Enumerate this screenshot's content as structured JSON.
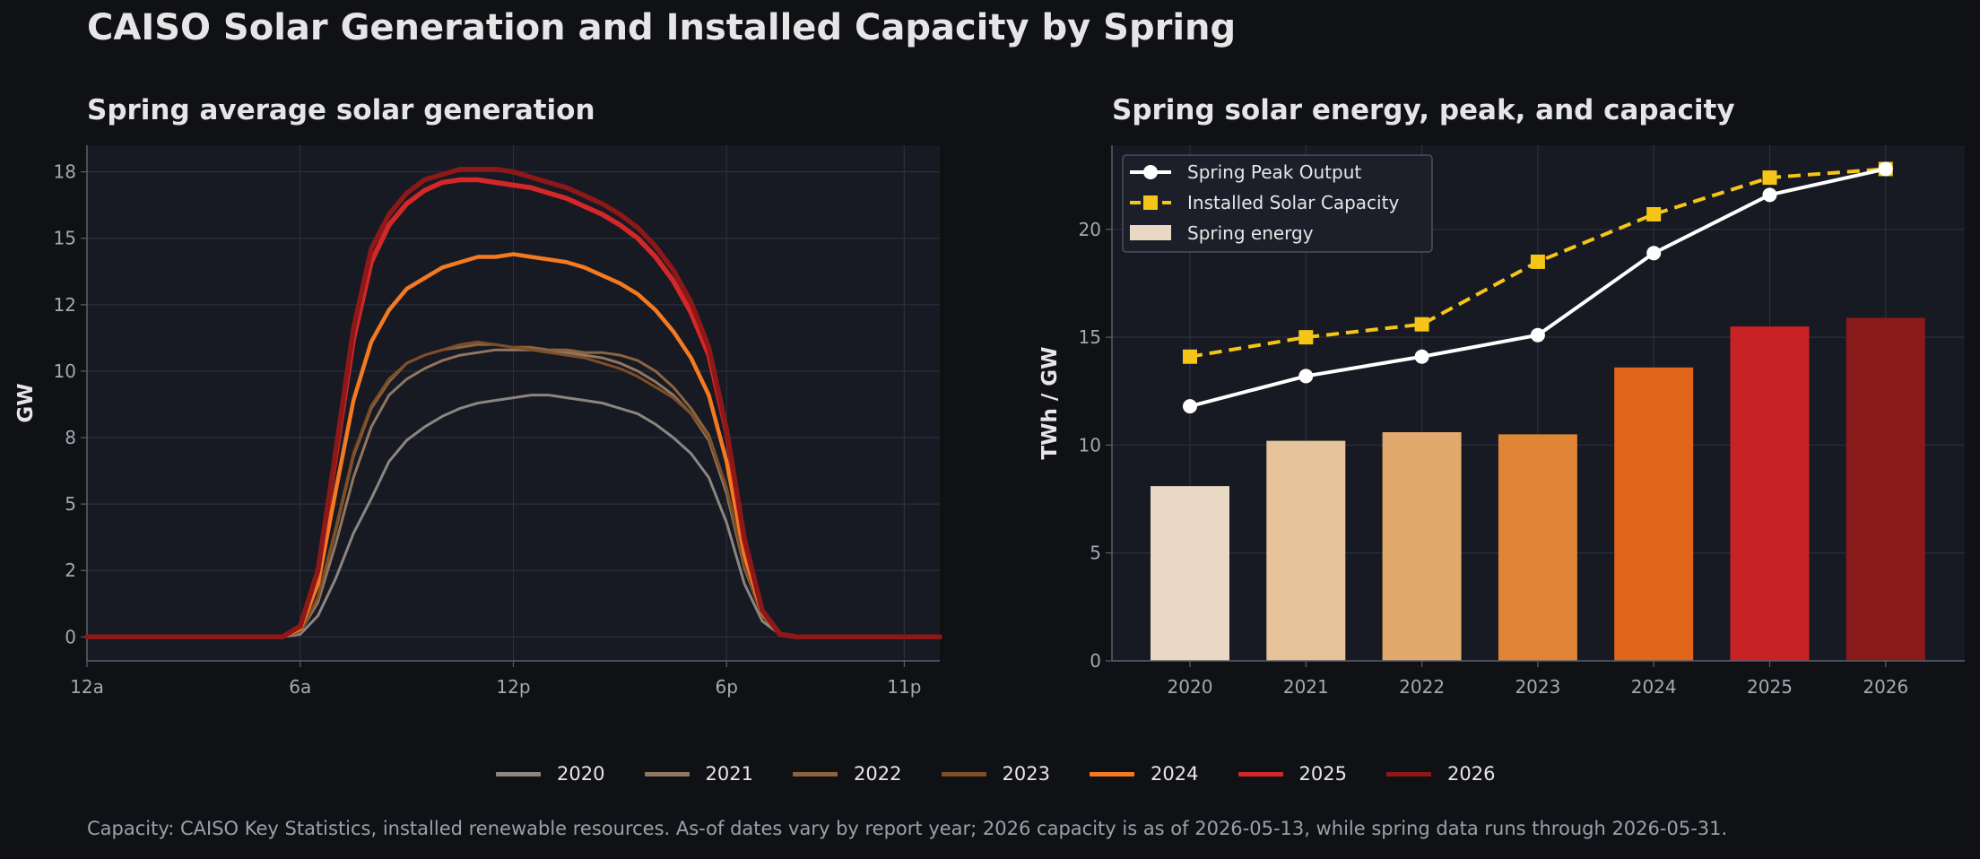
{
  "title": "CAISO Solar Generation and Installed Capacity by Spring",
  "footnote": "Capacity: CAISO Key Statistics, installed renewable resources. As-of dates vary by report year; 2026 capacity is as of 2026-05-13, while spring data runs through 2026-05-31.",
  "colors": {
    "background": "#101115",
    "plot_bg": "#171923",
    "grid": "#2c303c",
    "spine": "#59606c",
    "tick_text": "#a4a8b0",
    "peak_line": "#ffffff",
    "capacity_line": "#f5c518"
  },
  "legend_bottom": [
    {
      "label": "2020",
      "color": "#8c8580"
    },
    {
      "label": "2021",
      "color": "#917660"
    },
    {
      "label": "2022",
      "color": "#8a6440"
    },
    {
      "label": "2023",
      "color": "#7e4e26"
    },
    {
      "label": "2024",
      "color": "#f47a22"
    },
    {
      "label": "2025",
      "color": "#d42828"
    },
    {
      "label": "2026",
      "color": "#8e1818"
    }
  ],
  "chart_data": [
    {
      "type": "line",
      "title": "Spring average solar generation",
      "xlabel": "",
      "ylabel": "GW",
      "x_ticks": [
        "12a",
        "6a",
        "12p",
        "6p",
        "11p"
      ],
      "x_tick_hours": [
        0,
        6,
        12,
        18,
        23
      ],
      "xlim": [
        0,
        24
      ],
      "y_ticks": [
        "0",
        "2",
        "5",
        "8",
        "10",
        "12",
        "15",
        "18"
      ],
      "y_tick_values": [
        0,
        2.5,
        5,
        7.5,
        10,
        12.5,
        15,
        17.5
      ],
      "ylim": [
        -0.9,
        18.5
      ],
      "grid": true,
      "legend": "bottom",
      "x_hours": [
        0,
        5.5,
        6,
        6.5,
        7,
        7.5,
        8,
        8.5,
        9,
        9.5,
        10,
        10.5,
        11,
        11.5,
        12,
        12.5,
        13,
        13.5,
        14,
        14.5,
        15,
        15.5,
        16,
        16.5,
        17,
        17.5,
        18,
        18.5,
        19,
        19.5,
        20,
        24
      ],
      "series": [
        {
          "name": "2020",
          "color": "#8c8580",
          "width": 3.0,
          "values": [
            0,
            0,
            0.1,
            0.8,
            2.2,
            3.9,
            5.2,
            6.6,
            7.4,
            7.9,
            8.3,
            8.6,
            8.8,
            8.9,
            9.0,
            9.1,
            9.1,
            9.0,
            8.9,
            8.8,
            8.6,
            8.4,
            8.0,
            7.5,
            6.9,
            6.0,
            4.3,
            2.0,
            0.6,
            0.1,
            0,
            0
          ]
        },
        {
          "name": "2021",
          "color": "#917660",
          "width": 3.0,
          "values": [
            0,
            0,
            0.2,
            1.3,
            3.5,
            6.0,
            7.9,
            9.1,
            9.7,
            10.1,
            10.4,
            10.6,
            10.7,
            10.8,
            10.8,
            10.8,
            10.7,
            10.7,
            10.6,
            10.5,
            10.3,
            10.0,
            9.6,
            9.1,
            8.4,
            7.4,
            5.4,
            2.6,
            0.8,
            0.1,
            0,
            0
          ]
        },
        {
          "name": "2022",
          "color": "#8a6440",
          "width": 3.0,
          "values": [
            0,
            0,
            0.2,
            1.5,
            4.0,
            6.8,
            8.6,
            9.6,
            10.3,
            10.6,
            10.8,
            10.9,
            11.0,
            11.0,
            10.9,
            10.9,
            10.8,
            10.8,
            10.7,
            10.7,
            10.6,
            10.4,
            10.0,
            9.4,
            8.6,
            7.6,
            5.6,
            2.7,
            0.8,
            0.1,
            0,
            0
          ]
        },
        {
          "name": "2023",
          "color": "#7e4e26",
          "width": 3.0,
          "values": [
            0,
            0,
            0.2,
            1.5,
            4.1,
            6.9,
            8.7,
            9.7,
            10.3,
            10.6,
            10.8,
            11.0,
            11.1,
            11.0,
            10.9,
            10.8,
            10.7,
            10.6,
            10.5,
            10.3,
            10.1,
            9.8,
            9.4,
            9.0,
            8.4,
            7.5,
            5.6,
            2.7,
            0.8,
            0.1,
            0,
            0
          ]
        },
        {
          "name": "2024",
          "color": "#f47a22",
          "width": 4.5,
          "values": [
            0,
            0,
            0.3,
            2.0,
            5.5,
            8.9,
            11.1,
            12.3,
            13.1,
            13.5,
            13.9,
            14.1,
            14.3,
            14.3,
            14.4,
            14.3,
            14.2,
            14.1,
            13.9,
            13.6,
            13.3,
            12.9,
            12.3,
            11.5,
            10.5,
            9.1,
            6.6,
            3.1,
            0.9,
            0.1,
            0,
            0
          ]
        },
        {
          "name": "2025",
          "color": "#d42828",
          "width": 5.5,
          "values": [
            0,
            0,
            0.4,
            2.5,
            6.8,
            11.2,
            14.1,
            15.5,
            16.3,
            16.8,
            17.1,
            17.2,
            17.2,
            17.1,
            17.0,
            16.9,
            16.7,
            16.5,
            16.2,
            15.9,
            15.5,
            15.0,
            14.3,
            13.4,
            12.2,
            10.6,
            7.7,
            3.6,
            1.0,
            0.1,
            0,
            0
          ]
        },
        {
          "name": "2026",
          "color": "#8e1818",
          "width": 5.5,
          "values": [
            0,
            0,
            0.4,
            2.5,
            7.0,
            11.6,
            14.6,
            15.9,
            16.7,
            17.2,
            17.4,
            17.6,
            17.6,
            17.6,
            17.5,
            17.3,
            17.1,
            16.9,
            16.6,
            16.3,
            15.9,
            15.4,
            14.7,
            13.8,
            12.6,
            10.9,
            7.8,
            3.7,
            1.0,
            0.1,
            0,
            0
          ]
        }
      ]
    },
    {
      "type": "bar",
      "title": "Spring solar energy, peak, and capacity",
      "xlabel": "",
      "ylabel": "TWh / GW",
      "categories": [
        "2020",
        "2021",
        "2022",
        "2023",
        "2024",
        "2025",
        "2026"
      ],
      "y_ticks": [
        0,
        5,
        10,
        15,
        20
      ],
      "ylim": [
        0,
        23.9
      ],
      "grid": true,
      "legend": "top-left",
      "series": [
        {
          "name": "Spring Peak Output",
          "kind": "line",
          "marker": "circle",
          "values": [
            11.8,
            13.2,
            14.1,
            15.1,
            18.9,
            21.6,
            22.8
          ]
        },
        {
          "name": "Installed Solar Capacity",
          "kind": "line",
          "marker": "square",
          "dashed": true,
          "values": [
            14.1,
            15.0,
            15.6,
            18.5,
            20.7,
            22.4,
            22.8
          ]
        },
        {
          "name": "Spring energy",
          "kind": "bar",
          "values": [
            8.1,
            10.2,
            10.6,
            10.5,
            13.6,
            15.5,
            15.9
          ],
          "colors": [
            "#e8d8c4",
            "#e6c39a",
            "#e3a86b",
            "#e08535",
            "#e0651a",
            "#c82224",
            "#8a1a1a"
          ]
        }
      ]
    }
  ]
}
